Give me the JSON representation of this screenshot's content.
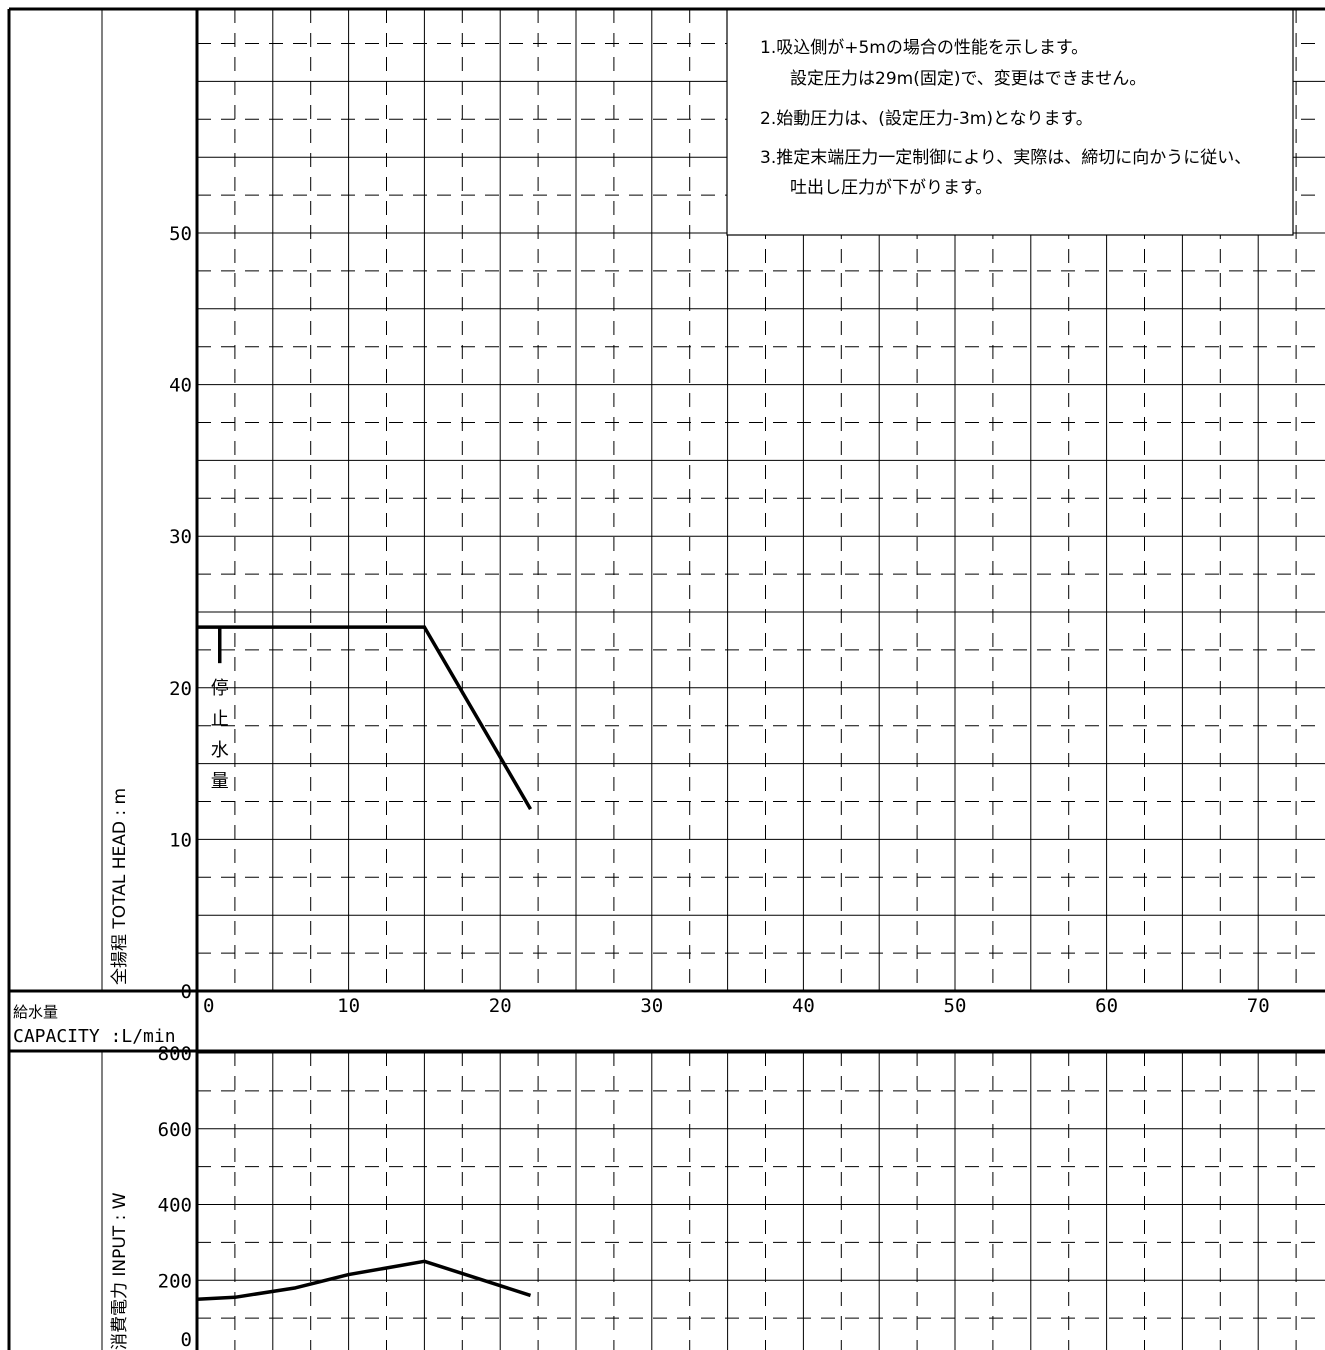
{
  "notes": [
    "1.吸込側が+5mの場合の性能を示します。",
    "設定圧力は29m(固定)で、変更はできません。",
    "2.始動圧力は、(設定圧力-3m)となります。",
    "3.推定末端圧力一定制御により、実際は、締切に向かうに従い、",
    "吐出し圧力が下がります。"
  ],
  "annotation": {
    "chars": [
      "停",
      "止",
      "水",
      "量"
    ]
  },
  "x_axis": {
    "label_jp": "給水量",
    "label_en": "CAPACITY :L/min",
    "ticks": [
      "0",
      "10",
      "20",
      "30",
      "40",
      "50",
      "60",
      "70"
    ]
  },
  "head_axis": {
    "label": "全揚程 TOTAL HEAD : m",
    "ticks": [
      "0",
      "10",
      "20",
      "30",
      "40",
      "50"
    ]
  },
  "input_axis": {
    "label": "消費電力 INPUT : W",
    "ticks": [
      "0",
      "200",
      "400",
      "600",
      "800"
    ]
  },
  "chart_data": [
    {
      "type": "line",
      "title": "",
      "xlabel": "給水量 CAPACITY :L/min",
      "ylabel": "全揚程 TOTAL HEAD : m",
      "xlim": [
        0,
        75
      ],
      "ylim": [
        0,
        65
      ],
      "grid": true,
      "series": [
        {
          "x": [
            0,
            15,
            22
          ],
          "y": [
            24,
            24,
            12
          ]
        }
      ],
      "annotations": [
        {
          "text": "停止水量",
          "x": 1.5,
          "y": 24
        }
      ]
    },
    {
      "type": "line",
      "title": "",
      "xlabel": "給水量 CAPACITY :L/min",
      "ylabel": "消費電力 INPUT : W",
      "xlim": [
        0,
        75
      ],
      "ylim": [
        0,
        800
      ],
      "grid": true,
      "series": [
        {
          "x": [
            0,
            2.5,
            6.5,
            10,
            15,
            22
          ],
          "y": [
            150,
            155,
            180,
            215,
            250,
            160
          ]
        }
      ]
    }
  ]
}
